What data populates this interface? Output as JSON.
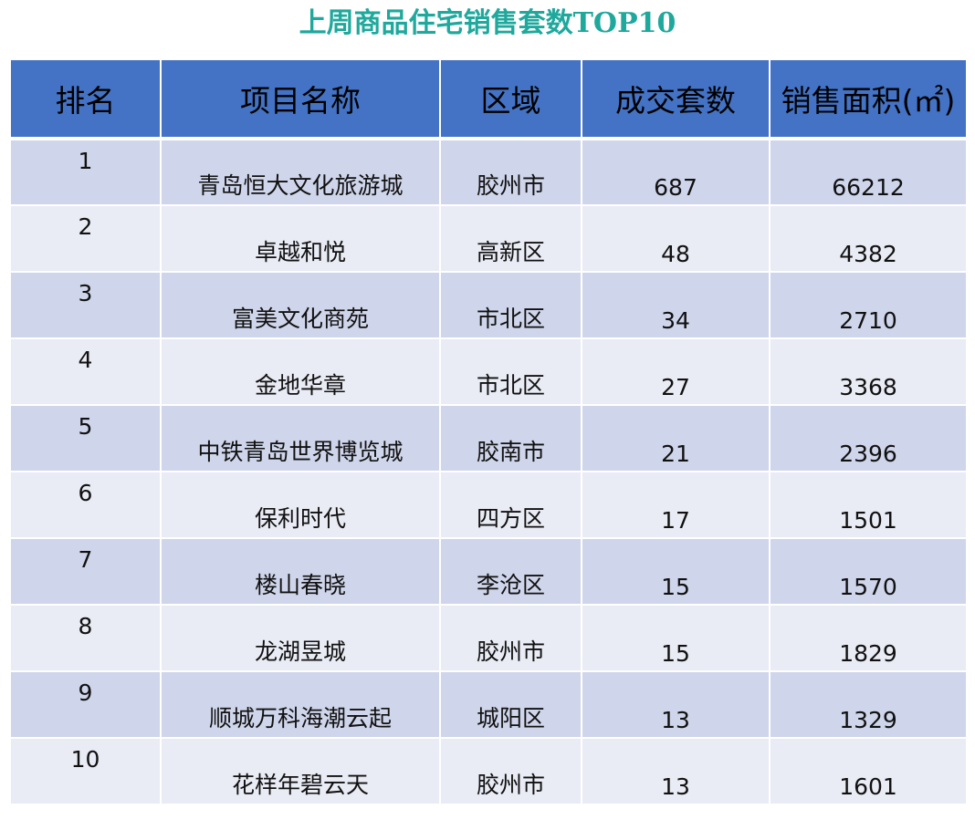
{
  "title": "上周商品住宅销售套数TOP10",
  "headers": {
    "rank": "排名",
    "name": "项目名称",
    "area": "区域",
    "count": "成交套数",
    "sqm": "销售面积(㎡)"
  },
  "rows": [
    {
      "rank": "1",
      "name": "青岛恒大文化旅游城",
      "area": "胶州市",
      "count": "687",
      "sqm": "66212"
    },
    {
      "rank": "2",
      "name": "卓越和悦",
      "area": "高新区",
      "count": "48",
      "sqm": "4382"
    },
    {
      "rank": "3",
      "name": "富美文化商苑",
      "area": "市北区",
      "count": "34",
      "sqm": "2710"
    },
    {
      "rank": "4",
      "name": "金地华章",
      "area": "市北区",
      "count": "27",
      "sqm": "3368"
    },
    {
      "rank": "5",
      "name": "中铁青岛世界博览城",
      "area": "胶南市",
      "count": "21",
      "sqm": "2396"
    },
    {
      "rank": "6",
      "name": "保利时代",
      "area": "四方区",
      "count": "17",
      "sqm": "1501"
    },
    {
      "rank": "7",
      "name": "楼山春晓",
      "area": "李沧区",
      "count": "15",
      "sqm": "1570"
    },
    {
      "rank": "8",
      "name": "龙湖昱城",
      "area": "胶州市",
      "count": "15",
      "sqm": "1829"
    },
    {
      "rank": "9",
      "name": "顺城万科海潮云起",
      "area": "城阳区",
      "count": "13",
      "sqm": "1329"
    },
    {
      "rank": "10",
      "name": "花样年碧云天",
      "area": "胶州市",
      "count": "13",
      "sqm": "1601"
    }
  ],
  "colors": {
    "title": "#1fa89c",
    "header_bg": "#4472c4",
    "row_odd_bg": "#cfd5ea",
    "row_even_bg": "#e9ebf5"
  }
}
